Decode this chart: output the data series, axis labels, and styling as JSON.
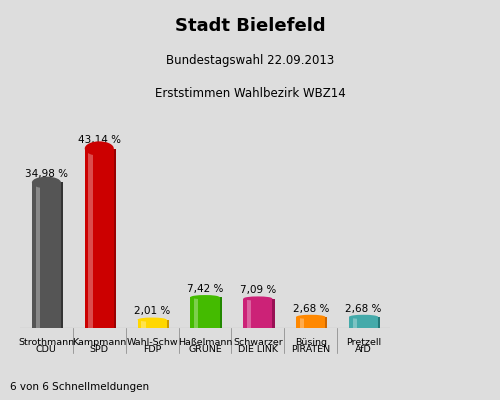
{
  "title": "Stadt Bielefeld",
  "subtitle1": "Bundestagswahl 22.09.2013",
  "subtitle2": "Erststimmen Wahlbezirk WBZ14",
  "name_labels": [
    "Strothmann",
    "Kampmann",
    "Wahl-Schw",
    "Haßelmann",
    "Schwarzer",
    "Büsing",
    "Pretzell"
  ],
  "party_labels": [
    "CDU",
    "SPD",
    "FDP",
    "GRÜNE",
    "DIE LINK",
    "PIRATEN",
    "AfD"
  ],
  "values": [
    34.98,
    43.14,
    2.01,
    7.42,
    7.09,
    2.68,
    2.68
  ],
  "value_labels": [
    "34,98 %",
    "43,14 %",
    "2,01 %",
    "7,42 %",
    "7,09 %",
    "2,68 %",
    "2,68 %"
  ],
  "bar_colors": [
    "#555555",
    "#CC0000",
    "#FFD700",
    "#44BB00",
    "#CC2277",
    "#FF8800",
    "#44AAAA"
  ],
  "bar_shadow_colors": [
    "#333333",
    "#990000",
    "#CC9900",
    "#228800",
    "#991155",
    "#CC6600",
    "#227777"
  ],
  "background_color": "#DDDDDD",
  "title_bg_color": "#FFFFFF",
  "footnote": "6 von 6 Schnellmeldungen",
  "ylim_max": 50,
  "title_fontsize": 13,
  "subtitle_fontsize": 8.5,
  "value_fontsize": 7.5,
  "tick_fontsize": 6.8,
  "footnote_fontsize": 7.5
}
